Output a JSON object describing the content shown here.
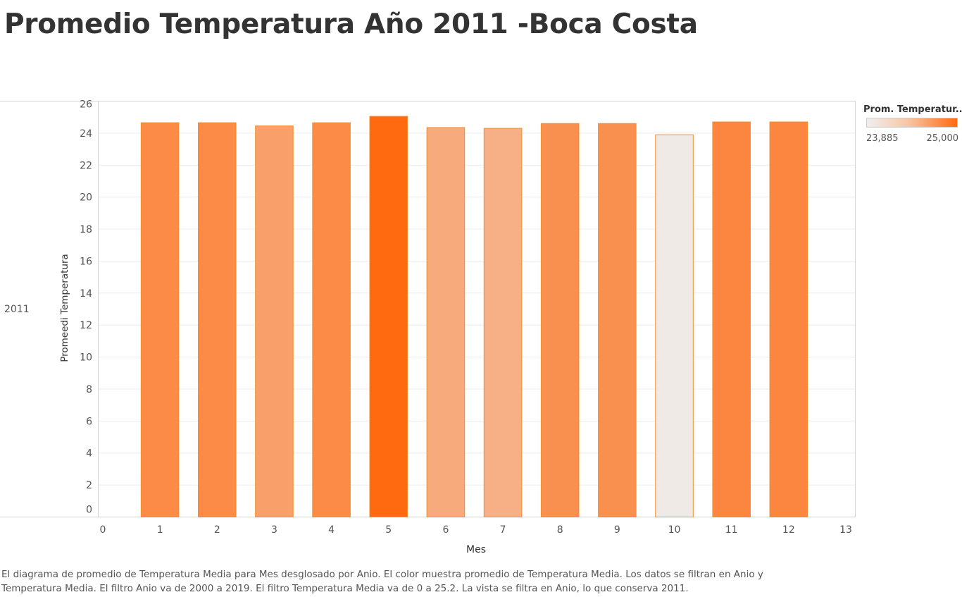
{
  "page": {
    "title": "Promedio Temperatura Año 2011 -Boca Costa",
    "row_label": "2011",
    "footer_line1": "El diagrama de promedio de Temperatura Media para Mes desglosado por Anio.  El color muestra promedio de Temperatura Media. Los datos se filtran en Anio y",
    "footer_line2": "Temperatura Media. El filtro Anio va de 2000 a 2019. El filtro Temperatura Media va de 0 a 25.2. La vista se filtra en Anio, lo que conserva 2011."
  },
  "legend": {
    "title": "Prom. Temperatur..",
    "min_label": "23,885",
    "max_label": "25,000",
    "color_low": "#efefef",
    "color_high": "#ff6a10"
  },
  "chart_data": {
    "type": "bar",
    "title": "Promedio Temperatura Año 2011 -Boca Costa",
    "xlabel": "Mes",
    "ylabel": "Promeedi Temperatura",
    "xlim": [
      0,
      13
    ],
    "ylim": [
      0,
      26
    ],
    "x_ticks": [
      "0",
      "1",
      "2",
      "3",
      "4",
      "5",
      "6",
      "7",
      "8",
      "9",
      "10",
      "11",
      "12",
      "13"
    ],
    "y_ticks": [
      "0",
      "2",
      "4",
      "6",
      "8",
      "10",
      "12",
      "14",
      "16",
      "18",
      "20",
      "22",
      "24",
      "26"
    ],
    "x": [
      1,
      2,
      3,
      4,
      5,
      6,
      7,
      8,
      9,
      10,
      11,
      12
    ],
    "values": [
      24.65,
      24.65,
      24.45,
      24.65,
      25.05,
      24.35,
      24.3,
      24.6,
      24.6,
      23.9,
      24.7,
      24.7
    ],
    "color_range": [
      23.885,
      25.0
    ],
    "bar_border_color": "#f28e2b",
    "grid": true,
    "legend_position": "right"
  }
}
